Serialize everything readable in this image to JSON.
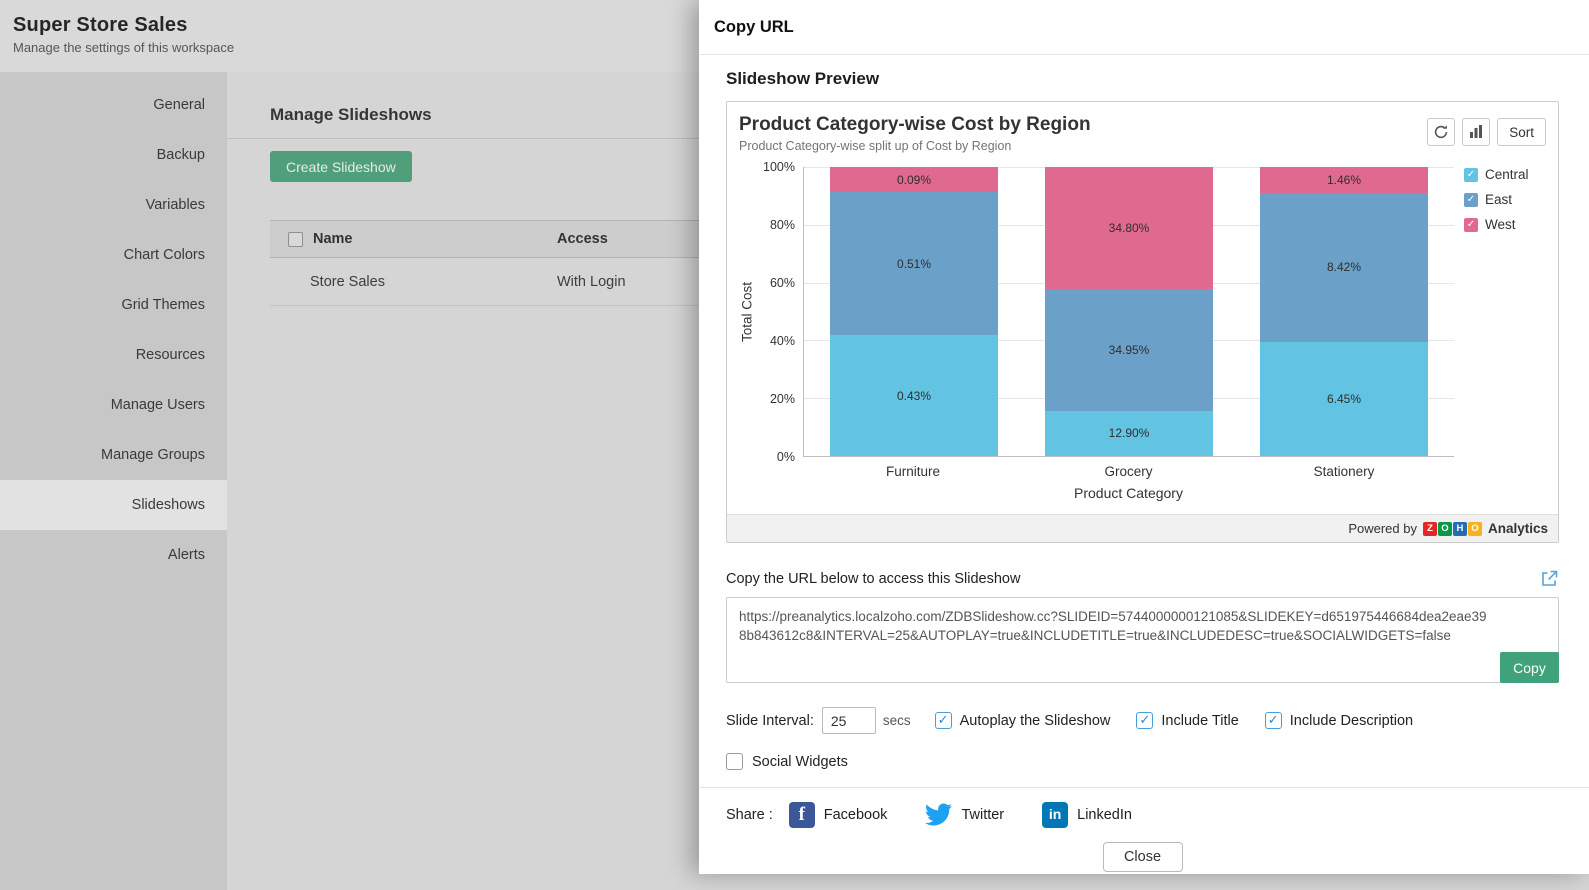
{
  "page": {
    "title": "Super Store Sales",
    "subtitle": "Manage the settings of this workspace"
  },
  "sidebar": {
    "items": [
      {
        "label": "General",
        "selected": false
      },
      {
        "label": "Backup",
        "selected": false
      },
      {
        "label": "Variables",
        "selected": false
      },
      {
        "label": "Chart Colors",
        "selected": false
      },
      {
        "label": "Grid Themes",
        "selected": false
      },
      {
        "label": "Resources",
        "selected": false
      },
      {
        "label": "Manage Users",
        "selected": false
      },
      {
        "label": "Manage Groups",
        "selected": false
      },
      {
        "label": "Slideshows",
        "selected": true
      },
      {
        "label": "Alerts",
        "selected": false
      }
    ]
  },
  "content": {
    "heading": "Manage Slideshows",
    "create_button": "Create Slideshow",
    "table": {
      "columns": [
        "Name",
        "Access"
      ],
      "rows": [
        {
          "name": "Store Sales",
          "access": "With Login"
        }
      ]
    }
  },
  "modal": {
    "title": "Copy URL",
    "preview_heading": "Slideshow Preview",
    "sort_button": "Sort",
    "url_caption": "Copy the URL below to access this Slideshow",
    "url": "https://preanalytics.localzoho.com/ZDBSlideshow.cc?SLIDEID=5744000000121085&SLIDEKEY=d651975446684dea2eae398b843612c8&INTERVAL=25&AUTOPLAY=true&INCLUDETITLE=true&INCLUDEDESC=true&SOCIALWIDGETS=false",
    "copy_button": "Copy",
    "slide_interval_label": "Slide Interval:",
    "slide_interval_value": "25",
    "slide_interval_unit": "secs",
    "options": [
      {
        "label": "Autoplay the Slideshow",
        "checked": true
      },
      {
        "label": "Include Title",
        "checked": true
      },
      {
        "label": "Include Description",
        "checked": true
      },
      {
        "label": "Social Widgets",
        "checked": false
      }
    ],
    "share_label": "Share :",
    "share_items": [
      {
        "label": "Facebook",
        "color": "#3b5998"
      },
      {
        "label": "Twitter",
        "color": "#1da1f2"
      },
      {
        "label": "LinkedIn",
        "color": "#0077b5"
      }
    ],
    "close_button": "Close",
    "powered_by": {
      "prefix": "Powered by",
      "logo_letters": [
        "Z",
        "O",
        "H",
        "O"
      ],
      "logo_colors": [
        "#e42527",
        "#089949",
        "#226db4",
        "#f9b21d"
      ],
      "suffix": "Analytics"
    }
  },
  "chart_data": {
    "type": "bar",
    "stacked": true,
    "normalized_to_100_percent": true,
    "title": "Product Category-wise Cost by Region",
    "subtitle": "Product Category-wise split up of Cost by Region",
    "xlabel": "Product Category",
    "ylabel": "Total Cost",
    "categories": [
      "Furniture",
      "Grocery",
      "Stationery"
    ],
    "series": [
      {
        "name": "Central",
        "color": "#62c3e2",
        "values": [
          0.43,
          12.9,
          6.45
        ],
        "labels": [
          "0.43%",
          "12.90%",
          "6.45%"
        ]
      },
      {
        "name": "East",
        "color": "#6ba1c9",
        "values": [
          0.51,
          34.95,
          8.42
        ],
        "labels": [
          "0.51%",
          "34.95%",
          "8.42%"
        ]
      },
      {
        "name": "West",
        "color": "#e06a8f",
        "values": [
          0.09,
          34.8,
          1.46
        ],
        "labels": [
          "0.09%",
          "34.80%",
          "1.46%"
        ]
      }
    ],
    "y_ticks": [
      "100%",
      "80%",
      "60%",
      "40%",
      "20%",
      "0%"
    ],
    "ylim": [
      0,
      100
    ],
    "grid": true,
    "legend_position": "right"
  }
}
